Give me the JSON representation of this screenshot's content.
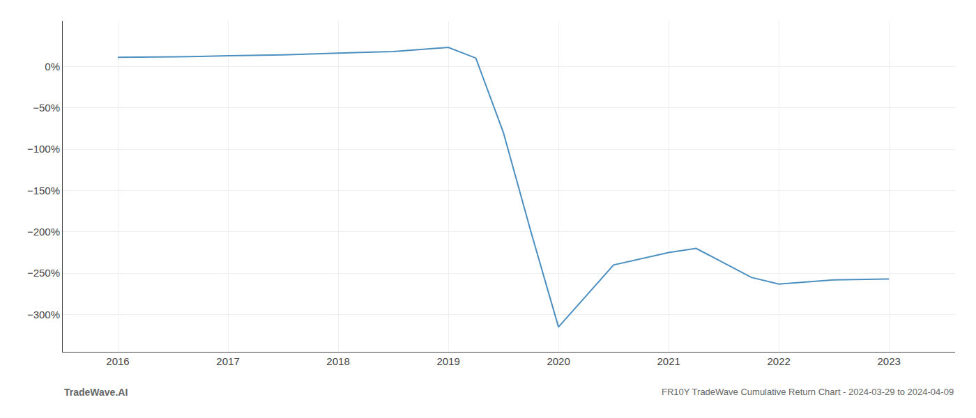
{
  "chart_data": {
    "type": "line",
    "x": [
      2016,
      2016.75,
      2017,
      2017.5,
      2018,
      2018.5,
      2019,
      2019.25,
      2019.5,
      2019.75,
      2020.0,
      2020.5,
      2021.0,
      2021.25,
      2021.75,
      2022.0,
      2022.5,
      2023.0
    ],
    "values": [
      11,
      12,
      13,
      14,
      16,
      18,
      23,
      10,
      -80,
      -200,
      -315,
      -240,
      -225,
      -220,
      -255,
      -263,
      -258,
      -257
    ],
    "color": "#4a8fc0",
    "xlim": [
      2015.5,
      2023.6
    ],
    "ylim": [
      -345,
      55
    ],
    "xticks": [
      2016,
      2017,
      2018,
      2019,
      2020,
      2021,
      2022,
      2023
    ],
    "yticks": [
      {
        "value": 0,
        "label": "0%"
      },
      {
        "value": -50,
        "label": "−50%"
      },
      {
        "value": -100,
        "label": "−100%"
      },
      {
        "value": -150,
        "label": "−150%"
      },
      {
        "value": -200,
        "label": "−200%"
      },
      {
        "value": -250,
        "label": "−250%"
      },
      {
        "value": -300,
        "label": "−300%"
      }
    ],
    "grid": true,
    "annotations": [
      "TradeWave.AI",
      "FR10Y TradeWave Cumulative Return Chart - 2024-03-29 to 2024-04-09"
    ]
  }
}
